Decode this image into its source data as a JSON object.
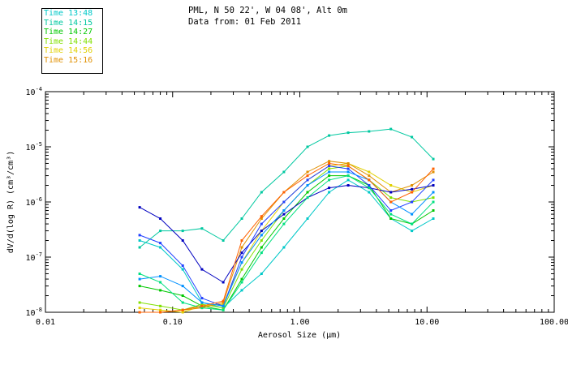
{
  "header": {
    "location": "PML, N 50 22', W 04 08', Alt 0m",
    "date_line": "Data from: 01 Feb 2011"
  },
  "chart_data": {
    "type": "line",
    "xlabel": "Aerosol Size (μm)",
    "ylabel": "dV/d(log R) (cm³/cm³)",
    "x_scale": "log",
    "y_scale": "log",
    "xlim": [
      0.01,
      100.0
    ],
    "ylim": [
      1e-08,
      0.0001
    ],
    "x_tick_labels": [
      "0.01",
      "0.10",
      "1.00",
      "10.00",
      "100.00"
    ],
    "x_tick_values": [
      0.01,
      0.1,
      1.0,
      10.0,
      100.0
    ],
    "y_tick_labels": [
      {
        "base": "10",
        "exp": "-8",
        "value": 1e-08
      },
      {
        "base": "10",
        "exp": "-7",
        "value": 1e-07
      },
      {
        "base": "10",
        "exp": "-6",
        "value": 1e-06
      },
      {
        "base": "10",
        "exp": "-5",
        "value": 1e-05
      },
      {
        "base": "10",
        "exp": "-4",
        "value": 0.0001
      }
    ],
    "x": [
      0.055,
      0.08,
      0.12,
      0.17,
      0.25,
      0.35,
      0.5,
      0.75,
      1.15,
      1.7,
      2.4,
      3.5,
      5.2,
      7.6,
      11.2
    ],
    "series": [
      {
        "name": "Time 13:48",
        "color": "#00c8c8",
        "values": [
          2e-07,
          1.5e-07,
          6e-08,
          1.5e-08,
          1.2e-08,
          2.5e-08,
          5e-08,
          1.5e-07,
          5e-07,
          1.5e-06,
          2.5e-06,
          1.5e-06,
          5e-07,
          3e-07,
          5e-07
        ]
      },
      {
        "name": "Time 14:15",
        "color": "#00c8a0",
        "values": [
          1.5e-07,
          3e-07,
          3e-07,
          3.3e-07,
          2e-07,
          5e-07,
          1.5e-06,
          3.5e-06,
          1e-05,
          1.6e-05,
          1.8e-05,
          1.9e-05,
          2.1e-05,
          1.5e-05,
          6e-06
        ]
      },
      {
        "name": "Time 14:27",
        "color": "#00c800",
        "values": [
          3e-08,
          2.5e-08,
          2e-08,
          1.3e-08,
          1.1e-08,
          4e-08,
          1.5e-07,
          5e-07,
          1.5e-06,
          3e-06,
          3e-06,
          2e-06,
          5e-07,
          4e-07,
          7e-07
        ]
      },
      {
        "name": "Time 14:44",
        "color": "#80e000",
        "values": [
          1.5e-08,
          1.3e-08,
          1.1e-08,
          1.4e-08,
          1.2e-08,
          6e-08,
          2e-07,
          7e-07,
          2e-06,
          4e-06,
          4.5e-06,
          2.5e-06,
          1.2e-06,
          1e-06,
          1.2e-06
        ]
      },
      {
        "name": "Time 14:56",
        "color": "#e0d000",
        "values": [
          1.2e-08,
          1.1e-08,
          1e-08,
          1.3e-08,
          1.4e-08,
          8e-08,
          3e-07,
          1e-06,
          2.5e-06,
          4.5e-06,
          5e-06,
          3.5e-06,
          2e-06,
          1.5e-06,
          2e-06
        ]
      },
      {
        "name": "Time 15:16",
        "color": "#e09000",
        "values": [
          1e-08,
          1e-08,
          1.1e-08,
          1.2e-08,
          1.5e-08,
          1.5e-07,
          5e-07,
          1.5e-06,
          3.5e-06,
          5.5e-06,
          5e-06,
          3e-06,
          1.5e-06,
          2e-06,
          3.5e-06
        ]
      },
      {
        "color": "#0000c0",
        "values": [
          8e-07,
          5e-07,
          2e-07,
          6e-08,
          3.5e-08,
          1.2e-07,
          3e-07,
          6e-07,
          1.2e-06,
          1.8e-06,
          2e-06,
          1.8e-06,
          1.5e-06,
          1.7e-06,
          2e-06
        ]
      },
      {
        "color": "#2040ff",
        "values": [
          2.5e-07,
          1.8e-07,
          7e-08,
          1.8e-08,
          1.3e-08,
          1e-07,
          4e-07,
          1e-06,
          2.5e-06,
          4.5e-06,
          4e-06,
          2e-06,
          7e-07,
          1e-06,
          2.5e-06
        ]
      },
      {
        "color": "#0090ff",
        "values": [
          4e-08,
          4.5e-08,
          3e-08,
          1.5e-08,
          1.3e-08,
          8e-08,
          2.5e-07,
          7e-07,
          2e-06,
          3.5e-06,
          3.5e-06,
          2.5e-06,
          1e-06,
          6e-07,
          1.5e-06
        ]
      },
      {
        "color": "#00e080",
        "values": [
          5e-08,
          3.5e-08,
          1.5e-08,
          1.2e-08,
          1.1e-08,
          3.5e-08,
          1.2e-07,
          4e-07,
          1.2e-06,
          2.5e-06,
          3e-06,
          1.8e-06,
          6e-07,
          4e-07,
          1e-06
        ]
      },
      {
        "color": "#ff6000",
        "values": [
          1e-08,
          1e-08,
          1.1e-08,
          1.3e-08,
          1.6e-08,
          2e-07,
          5.5e-07,
          1.5e-06,
          3e-06,
          5e-06,
          4.5e-06,
          2.5e-06,
          1e-06,
          1.5e-06,
          4e-06
        ]
      }
    ]
  }
}
